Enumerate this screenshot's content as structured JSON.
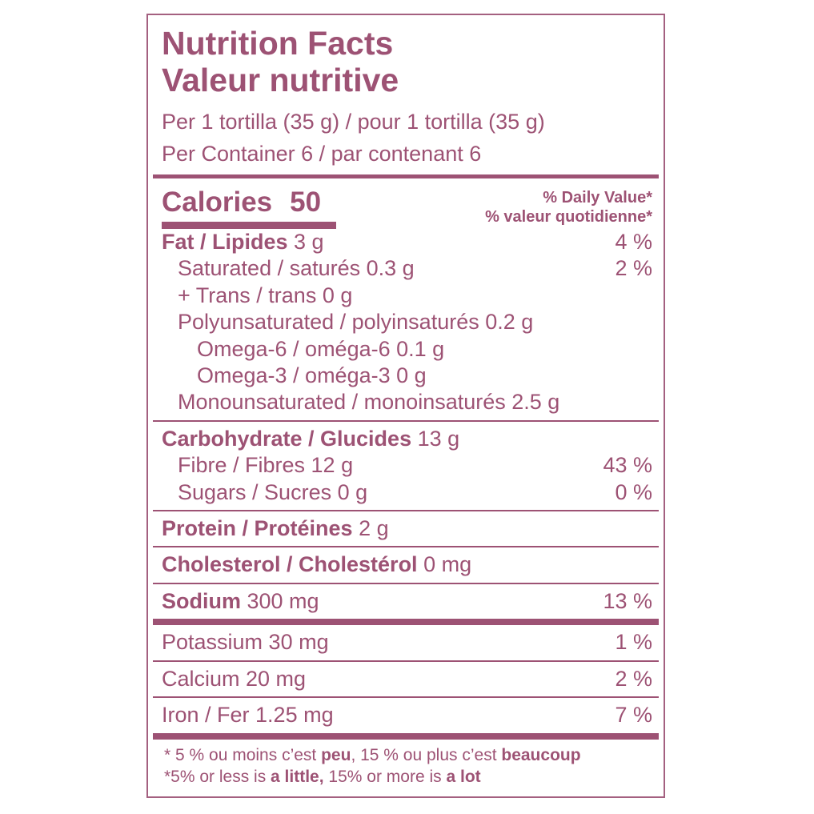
{
  "label": {
    "accent_color": "#9D5274",
    "title_en": "Nutrition Facts",
    "title_fr": "Valeur nutritive",
    "serving_line": "Per 1 tortilla (35 g) / pour 1 tortilla (35 g)",
    "container_line": "Per Container 6 / par contenant 6",
    "calories": {
      "label": "Calories",
      "value": "50"
    },
    "daily_value_heading": {
      "en": "% Daily Value*",
      "fr": "% valeur quotidienne*"
    },
    "rows": [
      {
        "bold": "Fat / Lipides",
        "rest": " 3 g",
        "pct": "4 %"
      },
      {
        "rest": "Saturated / saturés 0.3 g",
        "pct": "2 %"
      },
      {
        "rest": "+ Trans / trans 0 g"
      },
      {
        "rest": "Polyunsaturated / polyinsaturés 0.2 g"
      },
      {
        "rest": "Omega-6 / oméga-6 0.1 g"
      },
      {
        "rest": "Omega-3 / oméga-3 0 g"
      },
      {
        "rest": "Monounsaturated / monoinsaturés 2.5 g"
      },
      {
        "bold": "Carbohydrate / Glucides",
        "rest": " 13 g"
      },
      {
        "rest": "Fibre / Fibres 12 g",
        "pct": "43 %"
      },
      {
        "rest": "Sugars / Sucres 0 g",
        "pct": "0 %"
      },
      {
        "bold": "Protein / Protéines",
        "rest": " 2 g"
      },
      {
        "bold": "Cholesterol / Cholestérol",
        "rest": " 0 mg"
      },
      {
        "bold": "Sodium",
        "rest": " 300 mg",
        "pct": "13 %"
      },
      {
        "rest": "Potassium 30 mg",
        "pct": "1 %"
      },
      {
        "rest": "Calcium 20 mg",
        "pct": "2 %"
      },
      {
        "rest": "Iron / Fer 1.25 mg",
        "pct": "7 %"
      }
    ],
    "footnote_fr": [
      {
        "t": "* 5 % ou moins c’est "
      },
      {
        "t": "peu"
      },
      {
        "t": ", 15 % ou plus c’est "
      },
      {
        "t": "beaucoup"
      }
    ],
    "footnote_en": [
      {
        "t": "*5% or less is "
      },
      {
        "t": "a little,"
      },
      {
        "t": " 15% or more is "
      },
      {
        "t": "a lot"
      }
    ]
  }
}
